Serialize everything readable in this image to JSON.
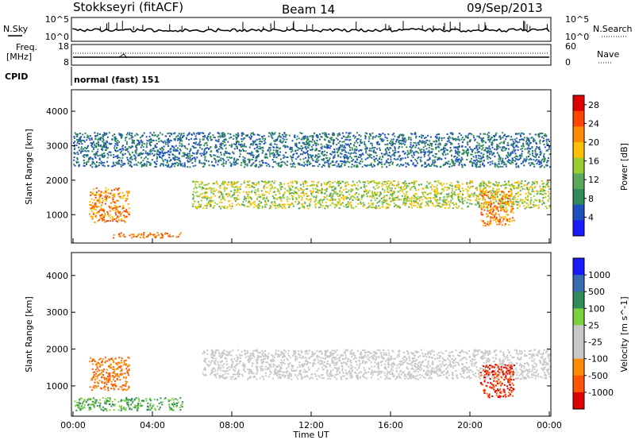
{
  "header": {
    "station": "Stokkseyri (fitACF)",
    "beam": "Beam 14",
    "date": "09/Sep/2013"
  },
  "noise_panel": {
    "left_label": "N.Sky",
    "right_label": "N.Search",
    "left_ticks": [
      "10^5",
      "10^0"
    ],
    "right_ticks": [
      "10^5",
      "10^0"
    ]
  },
  "freq_panel": {
    "left_label_1": "Freq.",
    "left_label_2": "[MHz]",
    "left_ticks": [
      "18",
      "8"
    ],
    "right_label": "Nave",
    "right_ticks": [
      "60",
      "0"
    ]
  },
  "cpid_panel": {
    "label": "CPID",
    "value": "normal (fast) 151"
  },
  "colors": {
    "power_scale": [
      "#1a1aff",
      "#2050c0",
      "#2e8a56",
      "#5aa85a",
      "#9acd32",
      "#ffc000",
      "#ff8c00",
      "#ff4500",
      "#e00000"
    ],
    "velocity_scale": [
      "#e00000",
      "#ff5500",
      "#ff8c00",
      "#c8c8c8",
      "#c8c8c8",
      "#7cd040",
      "#2e8a56",
      "#3a6ab0",
      "#1a1aff"
    ],
    "ground_scatter": "#c8c8c8"
  },
  "chart_data": [
    {
      "type": "heatmap",
      "title": "",
      "xlabel": "",
      "ylabel": "Slant Range [km]",
      "xlim": [
        "00:00",
        "00:00"
      ],
      "ylim": [
        200,
        4600
      ],
      "y_ticks": [
        "1000",
        "2000",
        "3000",
        "4000"
      ],
      "x_ticks": [
        "00:00",
        "04:00",
        "08:00",
        "12:00",
        "16:00",
        "20:00",
        "00:00"
      ],
      "colorbar": {
        "label": "Power [dB]",
        "ticks": [
          "4",
          "8",
          "12",
          "16",
          "20",
          "24",
          "28"
        ],
        "range": [
          0,
          30
        ]
      },
      "regions": [
        {
          "name": "ionospheric band",
          "t_start_h": 6.0,
          "t_end_h": 24.0,
          "range_km": [
            1200,
            2000
          ],
          "level": "12-20"
        },
        {
          "name": "early intense patch",
          "t_start_h": 0.8,
          "t_end_h": 2.8,
          "range_km": [
            800,
            1800
          ],
          "level": "20-28"
        },
        {
          "name": "near-range E-region",
          "t_start_h": 2.0,
          "t_end_h": 5.5,
          "range_km": [
            350,
            500
          ],
          "level": "24-28"
        },
        {
          "name": "late intense patch",
          "t_start_h": 20.5,
          "t_end_h": 22.2,
          "range_km": [
            700,
            1700
          ],
          "level": "20-28"
        },
        {
          "name": "far range weak",
          "t_start_h": 0.0,
          "t_end_h": 24.0,
          "range_km": [
            2400,
            3400
          ],
          "level": "4-8"
        }
      ]
    },
    {
      "type": "heatmap",
      "title": "",
      "xlabel": "Time UT",
      "ylabel": "Slant Range [km]",
      "xlim": [
        "00:00",
        "00:00"
      ],
      "ylim": [
        200,
        4600
      ],
      "y_ticks": [
        "1000",
        "2000",
        "3000",
        "4000"
      ],
      "x_ticks": [
        "00:00",
        "04:00",
        "08:00",
        "12:00",
        "16:00",
        "20:00",
        "00:00"
      ],
      "colorbar": {
        "label": "Velocity [m s^-1]",
        "ticks": [
          "1000",
          "500",
          "100",
          "25",
          "-25",
          "-100",
          "-500",
          "-1000"
        ],
        "range": [
          -1000,
          1000
        ]
      },
      "regions": [
        {
          "name": "ground scatter band",
          "t_start_h": 6.5,
          "t_end_h": 24.0,
          "range_km": [
            1200,
            2000
          ],
          "velocity": "-25 to 25"
        },
        {
          "name": "early receding patch",
          "t_start_h": 0.8,
          "t_end_h": 2.8,
          "range_km": [
            900,
            1800
          ],
          "velocity": "-100 to -500"
        },
        {
          "name": "near-range approaching",
          "t_start_h": 0.0,
          "t_end_h": 5.5,
          "range_km": [
            350,
            700
          ],
          "velocity": "100 to 500"
        },
        {
          "name": "late receding patch",
          "t_start_h": 20.5,
          "t_end_h": 22.2,
          "range_km": [
            700,
            1600
          ],
          "velocity": "-500 to -1000"
        }
      ]
    }
  ]
}
